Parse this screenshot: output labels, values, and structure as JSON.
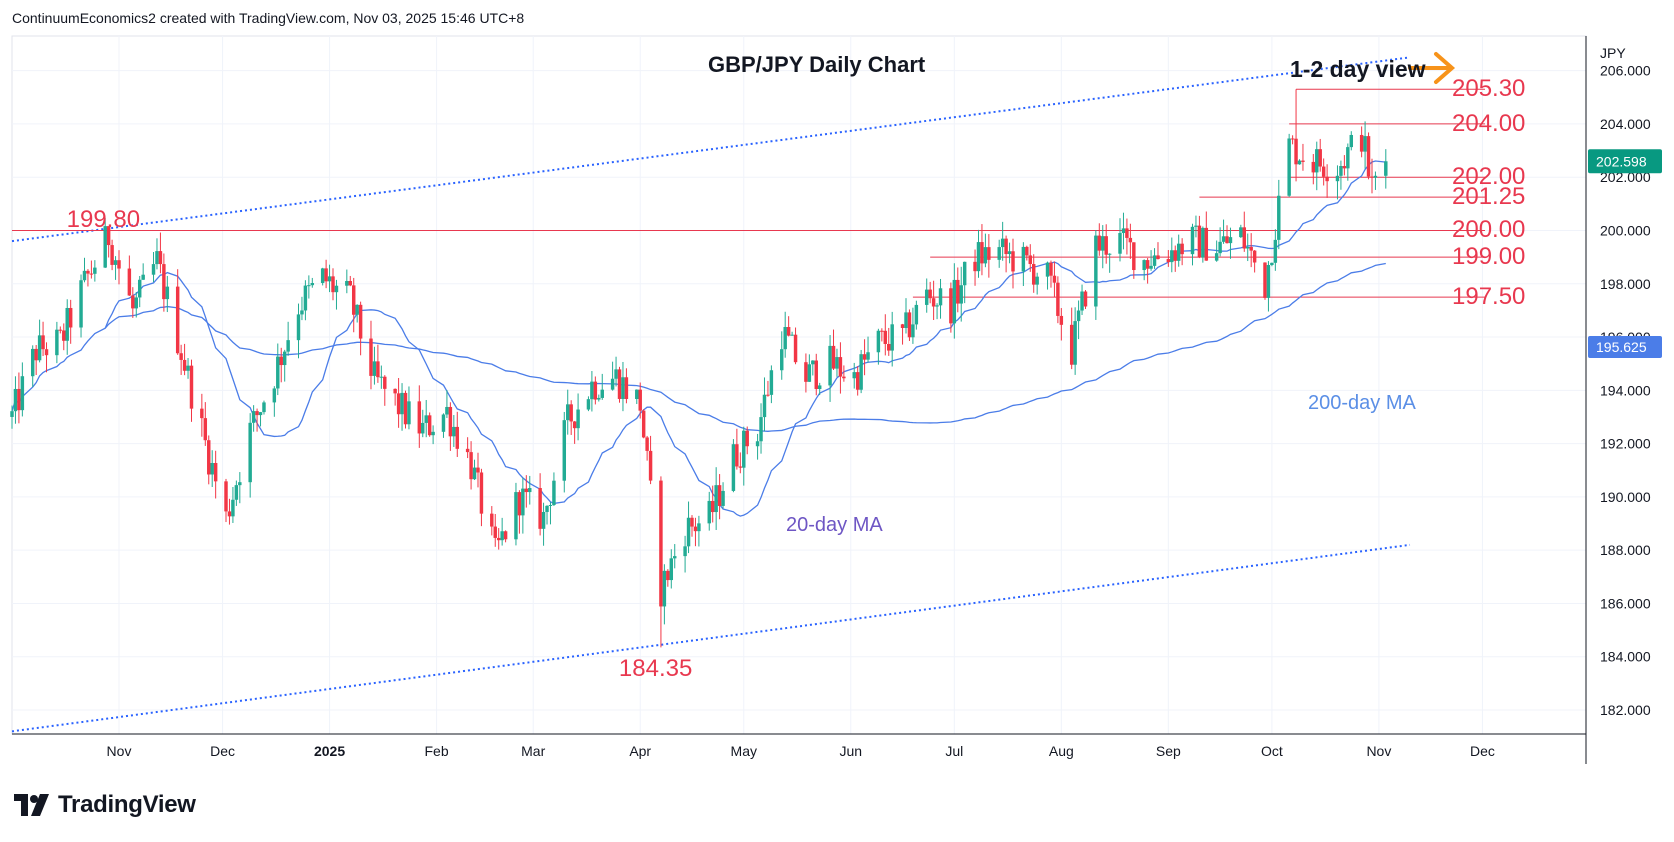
{
  "header": {
    "attribution": "ContinuumEconomics2 created with TradingView.com, Nov 03, 2025 15:46 UTC+8"
  },
  "branding": {
    "logo_text": "TradingView"
  },
  "chart_data": {
    "type": "candlestick",
    "title": "GBP/JPY Daily Chart",
    "currency_label": "JPY",
    "view_note": "1-2 day view",
    "y_ticks": [
      182,
      184,
      186,
      188,
      190,
      192,
      194,
      196,
      198,
      200,
      202,
      204,
      206
    ],
    "y_tick_labels": [
      "182.000",
      "184.000",
      "186.000",
      "188.000",
      "190.000",
      "192.000",
      "194.000",
      "196.000",
      "198.000",
      "200.000",
      "202.000",
      "204.000",
      "206.000"
    ],
    "ylim": [
      181.1,
      207.3
    ],
    "x_tick_labels": [
      "Nov",
      "Dec",
      "2025",
      "Feb",
      "Mar",
      "Apr",
      "May",
      "Jun",
      "Jul",
      "Aug",
      "Sep",
      "Oct",
      "Nov",
      "Dec"
    ],
    "x_tick_dates": [
      "2024-11-01",
      "2024-12-01",
      "2025-01-01",
      "2025-02-01",
      "2025-03-01",
      "2025-04-01",
      "2025-05-01",
      "2025-06-01",
      "2025-07-01",
      "2025-08-01",
      "2025-09-01",
      "2025-10-01",
      "2025-11-01",
      "2025-12-01"
    ],
    "last_price": "202.598",
    "ma200_value": "195.625",
    "ma20_label": "20-day MA",
    "ma200_label": "200-day MA",
    "levels": [
      {
        "value": 205.3,
        "label": "205.30",
        "from": "2025-10-08"
      },
      {
        "value": 204.0,
        "label": "204.00",
        "from": "2025-10-06"
      },
      {
        "value": 202.0,
        "label": "202.00",
        "from": "2025-10-06"
      },
      {
        "value": 201.25,
        "label": "201.25",
        "from": "2025-09-10"
      },
      {
        "value": 200.0,
        "label": "200.00",
        "from": "2024-10-01"
      },
      {
        "value": 199.0,
        "label": "199.00",
        "from": "2025-06-24"
      },
      {
        "value": 197.5,
        "label": "197.50",
        "from": "2025-06-19"
      }
    ],
    "annotations": [
      {
        "label": "199.80",
        "date": "2024-10-29",
        "value": 199.8
      },
      {
        "label": "184.35",
        "date": "2025-04-07",
        "value": 184.35
      }
    ],
    "channel": {
      "upper": [
        [
          "2024-10-01",
          199.6
        ],
        [
          "2025-11-10",
          206.5
        ]
      ],
      "lower": [
        [
          "2024-10-01",
          181.2
        ],
        [
          "2025-11-10",
          188.2
        ]
      ]
    },
    "colors": {
      "up": "#22ab94",
      "down": "#f23645",
      "level": "#e8384f",
      "ma20": "#4b7de8",
      "ma200": "#4b7de8",
      "channel": "#2962ff",
      "arrow": "#f7931a",
      "ma20_text": "#6e56c4",
      "ma200_text": "#5b8fe6"
    },
    "anchors": [
      [
        "2024-10-01",
        193.0
      ],
      [
        "2024-10-08",
        195.5
      ],
      [
        "2024-10-15",
        195.8
      ],
      [
        "2024-10-22",
        198.0
      ],
      [
        "2024-10-29",
        199.8
      ],
      [
        "2024-11-05",
        197.0
      ],
      [
        "2024-11-12",
        198.8
      ],
      [
        "2024-11-19",
        195.5
      ],
      [
        "2024-11-26",
        192.0
      ],
      [
        "2024-12-02",
        189.2
      ],
      [
        "2024-12-09",
        192.5
      ],
      [
        "2024-12-16",
        194.6
      ],
      [
        "2024-12-23",
        197.2
      ],
      [
        "2024-12-30",
        198.2
      ],
      [
        "2025-01-07",
        197.4
      ],
      [
        "2025-01-14",
        194.4
      ],
      [
        "2025-01-21",
        193.4
      ],
      [
        "2025-01-28",
        192.5
      ],
      [
        "2025-02-04",
        193.2
      ],
      [
        "2025-02-11",
        191.2
      ],
      [
        "2025-02-18",
        187.8
      ],
      [
        "2025-02-25",
        190.0
      ],
      [
        "2025-03-04",
        189.2
      ],
      [
        "2025-03-11",
        192.8
      ],
      [
        "2025-03-18",
        194.2
      ],
      [
        "2025-03-25",
        194.5
      ],
      [
        "2025-04-01",
        193.5
      ],
      [
        "2025-04-07",
        186.5
      ],
      [
        "2025-04-14",
        188.8
      ],
      [
        "2025-04-21",
        189.2
      ],
      [
        "2025-04-28",
        191.5
      ],
      [
        "2025-05-05",
        192.5
      ],
      [
        "2025-05-12",
        196.2
      ],
      [
        "2025-05-19",
        194.5
      ],
      [
        "2025-05-26",
        195.0
      ],
      [
        "2025-06-02",
        194.5
      ],
      [
        "2025-06-09",
        195.8
      ],
      [
        "2025-06-16",
        196.0
      ],
      [
        "2025-06-23",
        197.6
      ],
      [
        "2025-06-30",
        197.2
      ],
      [
        "2025-07-07",
        199.0
      ],
      [
        "2025-07-14",
        199.2
      ],
      [
        "2025-07-21",
        198.8
      ],
      [
        "2025-07-28",
        198.2
      ],
      [
        "2025-08-04",
        195.5
      ],
      [
        "2025-08-11",
        199.4
      ],
      [
        "2025-08-18",
        199.6
      ],
      [
        "2025-08-25",
        198.9
      ],
      [
        "2025-09-01",
        199.2
      ],
      [
        "2025-09-08",
        199.6
      ],
      [
        "2025-09-15",
        199.4
      ],
      [
        "2025-09-22",
        199.8
      ],
      [
        "2025-09-29",
        198.0
      ],
      [
        "2025-10-06",
        203.2
      ],
      [
        "2025-10-13",
        202.6
      ],
      [
        "2025-10-20",
        202.4
      ],
      [
        "2025-10-27",
        203.6
      ],
      [
        "2025-10-30",
        201.6
      ],
      [
        "2025-11-03",
        202.6
      ]
    ]
  }
}
